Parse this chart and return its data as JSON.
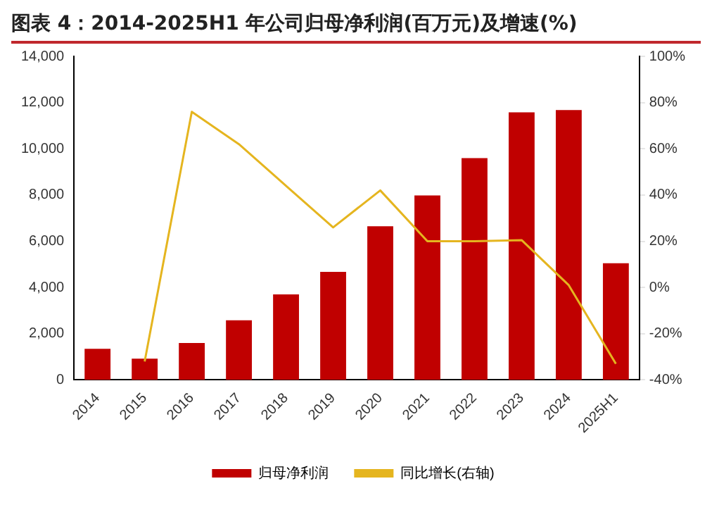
{
  "chart_data": {
    "type": "bar",
    "title": "图表 4：2014-2025H1 年公司归母净利润(百万元)及增速(%)",
    "categories": [
      "2014",
      "2015",
      "2016",
      "2017",
      "2018",
      "2019",
      "2020",
      "2021",
      "2022",
      "2023",
      "2024",
      "2025H1"
    ],
    "series": [
      {
        "name": "归母净利润",
        "color": "#c00000",
        "values": [
          1350,
          920,
          1600,
          2580,
          3700,
          4680,
          6650,
          7980,
          9600,
          11580,
          11680,
          5050
        ]
      },
      {
        "name": "同比增长(右轴)",
        "type": "line",
        "axis": "y2",
        "color": "#e5b51f",
        "values": [
          null,
          -32,
          76,
          62,
          44,
          26,
          42,
          20,
          20,
          20.5,
          1,
          -33
        ]
      }
    ],
    "ylim": [
      0,
      14000
    ],
    "yticks": [
      0,
      {
        "value": 2000,
        "label": "2,000"
      },
      {
        "value": 4000,
        "label": "4,000"
      },
      {
        "value": 6000,
        "label": "6,000"
      },
      {
        "value": 8000,
        "label": "8,000"
      },
      {
        "value": 10000,
        "label": "10,000"
      },
      {
        "value": 12000,
        "label": "12,000"
      },
      {
        "value": 14000,
        "label": "14,000"
      }
    ],
    "y2lim": [
      -40,
      100
    ],
    "y2ticks": [
      {
        "value": -40,
        "label": "-40%"
      },
      {
        "value": -20,
        "label": "-20%"
      },
      {
        "value": 0,
        "label": "0%"
      },
      {
        "value": 20,
        "label": "20%"
      },
      {
        "value": 40,
        "label": "40%"
      },
      {
        "value": 60,
        "label": "60%"
      },
      {
        "value": 80,
        "label": "80%"
      },
      {
        "value": 100,
        "label": "100%"
      }
    ],
    "legend": "bottom",
    "marker": "none",
    "grid": false
  }
}
